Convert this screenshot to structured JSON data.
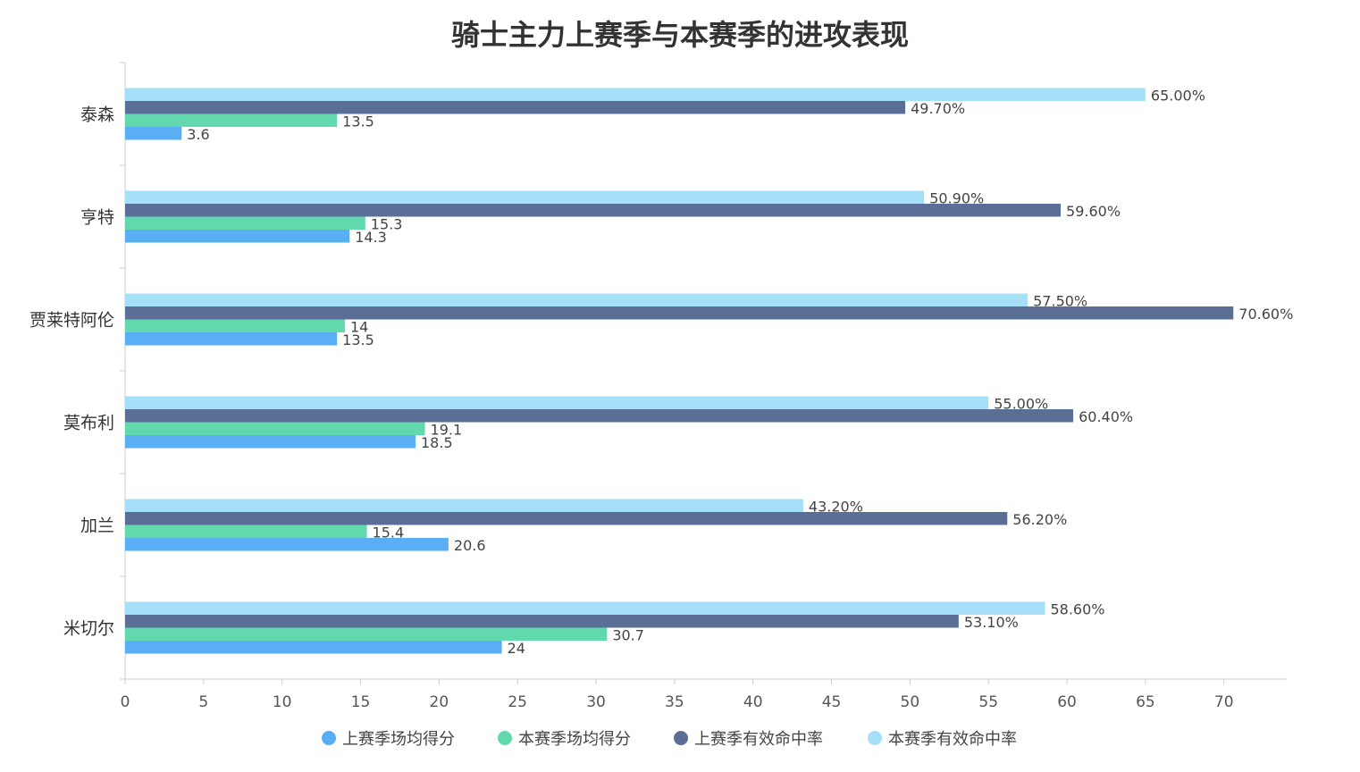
{
  "chart_data": {
    "type": "bar",
    "orientation": "horizontal",
    "title": "骑士主力上赛季与本赛季的进攻表现",
    "categories": [
      "泰森",
      "亨特",
      "贾莱特阿伦",
      "莫布利",
      "加兰",
      "米切尔"
    ],
    "series": [
      {
        "name": "上赛季场均得分",
        "color": "#5aaef3",
        "values": [
          3.6,
          14.3,
          13.5,
          18.5,
          20.6,
          24
        ],
        "labels": [
          "3.6",
          "14.3",
          "13.5",
          "18.5",
          "20.6",
          "24"
        ]
      },
      {
        "name": "本赛季场均得分",
        "color": "#62d9ad",
        "values": [
          13.5,
          15.3,
          14,
          19.1,
          15.4,
          30.7
        ],
        "labels": [
          "13.5",
          "15.3",
          "14",
          "19.1",
          "15.4",
          "30.7"
        ]
      },
      {
        "name": "上赛季有效命中率",
        "color": "#5b6e96",
        "values": [
          49.7,
          59.6,
          70.6,
          60.4,
          56.2,
          53.1
        ],
        "labels": [
          "49.70%",
          "59.60%",
          "70.60%",
          "60.40%",
          "56.20%",
          "53.10%"
        ]
      },
      {
        "name": "本赛季有效命中率",
        "color": "#a6dff8",
        "values": [
          65.0,
          50.9,
          57.5,
          55.0,
          43.2,
          58.6
        ],
        "labels": [
          "65.00%",
          "50.90%",
          "57.50%",
          "55.00%",
          "43.20%",
          "58.60%"
        ]
      }
    ],
    "xticks": [
      "0",
      "5",
      "10",
      "15",
      "20",
      "25",
      "30",
      "35",
      "40",
      "45",
      "50",
      "55",
      "60",
      "65",
      "70"
    ],
    "xlim": [
      0,
      74
    ],
    "xlabel": "",
    "ylabel": "",
    "grid": false,
    "legend_position": "bottom"
  }
}
